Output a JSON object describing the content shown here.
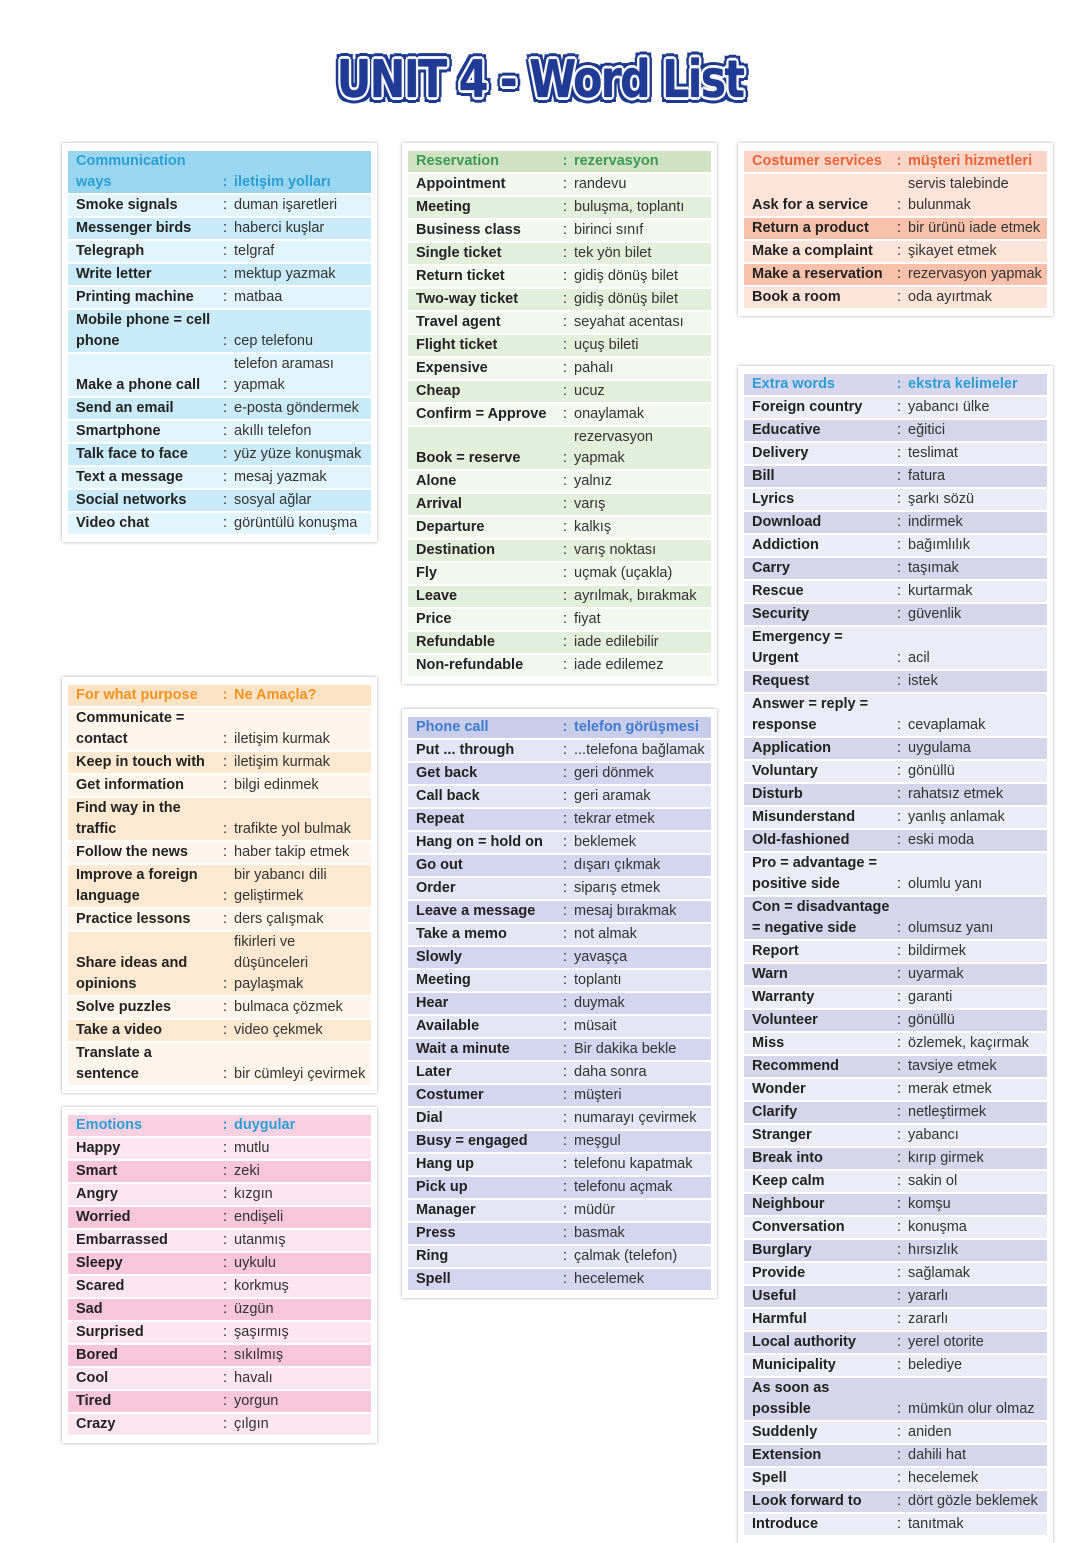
{
  "title": "UNIT 4 - Word List",
  "colors": {
    "title": "#1f3b95",
    "blue": {
      "head": "#9ad6f0",
      "a": "#c9ebf9",
      "b": "#e3f5fc",
      "text": "#2a9fd6"
    },
    "green": {
      "head": "#cfe3c3",
      "a": "#e2efda",
      "b": "#f2f8ee",
      "text": "#3e9a51"
    },
    "salmon": {
      "head": "#fbd6c6",
      "a": "#f9c0aa",
      "b": "#fde3d8",
      "text": "#e8633a"
    },
    "orange": {
      "head": "#fde3c6",
      "a": "#fde8d1",
      "b": "#fff5ea",
      "text": "#f2931f"
    },
    "purple": {
      "head": "#c9cde9",
      "a": "#d3d6ee",
      "b": "#e4e6f5",
      "text": "#3f7bd1"
    },
    "lavender": {
      "head": "#d7d6ec",
      "a": "#d6d6ea",
      "b": "#ececf6",
      "text": "#2a9fd6"
    },
    "pink": {
      "head": "#fad1e1",
      "a": "#f8c6da",
      "b": "#fde6ef",
      "text": "#2a9fd6"
    }
  },
  "sections": [
    {
      "id": "communication",
      "theme": "blue",
      "head": [
        "Communication ways",
        "iletişim yolları"
      ],
      "rows": [
        [
          "Smoke signals",
          "duman işaretleri"
        ],
        [
          "Messenger birds",
          "haberci kuşlar"
        ],
        [
          "Telegraph",
          "telgraf"
        ],
        [
          "Write letter",
          "mektup yazmak"
        ],
        [
          "Printing machine",
          "matbaa"
        ],
        [
          "Mobile phone = cell phone",
          "cep telefonu"
        ],
        [
          "Make a phone call",
          "telefon araması yapmak"
        ],
        [
          "Send an email",
          "e-posta göndermek"
        ],
        [
          "Smartphone",
          "akıllı telefon"
        ],
        [
          "Talk face to face",
          "yüz yüze konuşmak"
        ],
        [
          "Text a message",
          "mesaj yazmak"
        ],
        [
          "Social networks",
          "sosyal ağlar"
        ],
        [
          "Video chat",
          "görüntülü konuşma"
        ]
      ]
    },
    {
      "id": "purpose",
      "theme": "orange",
      "head": [
        "For what purpose",
        "Ne Amaçla?"
      ],
      "rows": [
        [
          "Communicate = contact",
          "iletişim kurmak"
        ],
        [
          "Keep in touch with",
          "iletişim kurmak"
        ],
        [
          "Get information",
          "bilgi edinmek"
        ],
        [
          "Find way in the traffic",
          "trafikte yol bulmak"
        ],
        [
          "Follow the news",
          "haber takip etmek"
        ],
        [
          "Improve a foreign language",
          "bir yabancı dili geliştirmek"
        ],
        [
          "Practice lessons",
          "ders çalışmak"
        ],
        [
          "Share ideas and opinions",
          "fikirleri ve düşünceleri paylaşmak"
        ],
        [
          "Solve puzzles",
          "bulmaca çözmek"
        ],
        [
          "Take a video",
          "video çekmek"
        ],
        [
          "Translate a sentence",
          "bir cümleyi çevirmek"
        ]
      ]
    },
    {
      "id": "emotions",
      "theme": "pink",
      "head": [
        "Emotions",
        "duygular"
      ],
      "rows": [
        [
          "Happy",
          "mutlu"
        ],
        [
          "Smart",
          "zeki"
        ],
        [
          "Angry",
          "kızgın"
        ],
        [
          "Worried",
          "endişeli"
        ],
        [
          "Embarrassed",
          "utanmış"
        ],
        [
          "Sleepy",
          "uykulu"
        ],
        [
          "Scared",
          "korkmuş"
        ],
        [
          "Sad",
          "üzgün"
        ],
        [
          "Surprised",
          "şaşırmış"
        ],
        [
          "Bored",
          "sıkılmış"
        ],
        [
          "Cool",
          "havalı"
        ],
        [
          "Tired",
          "yorgun"
        ],
        [
          "Crazy",
          "çılgın"
        ]
      ]
    },
    {
      "id": "reservation",
      "theme": "green",
      "head": [
        "Reservation",
        "rezervasyon"
      ],
      "rows": [
        [
          "Appointment",
          "randevu"
        ],
        [
          "Meeting",
          "buluşma, toplantı"
        ],
        [
          "Business class",
          "birinci sınıf"
        ],
        [
          "Single ticket",
          "tek yön bilet"
        ],
        [
          "Return ticket",
          "gidiş dönüş bilet"
        ],
        [
          "Two-way ticket",
          "gidiş dönüş bilet"
        ],
        [
          "Travel agent",
          "seyahat acentası"
        ],
        [
          "Flight ticket",
          "uçuş bileti"
        ],
        [
          "Expensive",
          "pahalı"
        ],
        [
          "Cheap",
          "ucuz"
        ],
        [
          "Confirm = Approve",
          "onaylamak"
        ],
        [
          "Book = reserve",
          "rezervasyon yapmak"
        ],
        [
          "Alone",
          "yalnız"
        ],
        [
          "Arrival",
          "varış"
        ],
        [
          "Departure",
          "kalkış"
        ],
        [
          "Destination",
          "varış noktası"
        ],
        [
          "Fly",
          "uçmak (uçakla)"
        ],
        [
          "Leave",
          "ayrılmak, bırakmak"
        ],
        [
          "Price",
          "fiyat"
        ],
        [
          "Refundable",
          "iade edilebilir"
        ],
        [
          "Non-refundable",
          "iade edilemez"
        ]
      ]
    },
    {
      "id": "phone",
      "theme": "purple",
      "head": [
        "Phone call",
        "telefon görüşmesi"
      ],
      "rows": [
        [
          "Put ... through",
          "...telefona bağlamak"
        ],
        [
          "Get back",
          "geri dönmek"
        ],
        [
          "Call back",
          "geri aramak"
        ],
        [
          "Repeat",
          "tekrar etmek"
        ],
        [
          "Hang on = hold on",
          "beklemek"
        ],
        [
          "Go out",
          "dışarı çıkmak"
        ],
        [
          "Order",
          "siparış etmek"
        ],
        [
          "Leave a message",
          "mesaj bırakmak"
        ],
        [
          "Take a memo",
          "not almak"
        ],
        [
          "Slowly",
          "yavaşça"
        ],
        [
          "Meeting",
          "toplantı"
        ],
        [
          "Hear",
          "duymak"
        ],
        [
          "Available",
          "müsait"
        ],
        [
          "Wait a minute",
          "Bir dakika bekle"
        ],
        [
          "Later",
          "daha sonra"
        ],
        [
          "Costumer",
          "müşteri"
        ],
        [
          "Dial",
          "numarayı çevirmek"
        ],
        [
          "Busy = engaged",
          "meşgul"
        ],
        [
          "Hang up",
          "telefonu kapatmak"
        ],
        [
          "Pick up",
          "telefonu açmak"
        ],
        [
          "Manager",
          "müdür"
        ],
        [
          "Press",
          "basmak"
        ],
        [
          "Ring",
          "çalmak (telefon)"
        ],
        [
          "Spell",
          "hecelemek"
        ]
      ]
    },
    {
      "id": "services",
      "theme": "salmon",
      "head": [
        "Costumer services",
        "müşteri hizmetleri"
      ],
      "rows": [
        [
          "Ask for a service",
          "servis talebinde bulunmak"
        ],
        [
          "Return a product",
          "bir ürünü iade etmek"
        ],
        [
          "Make a complaint",
          "şikayet etmek"
        ],
        [
          "Make a reservation",
          "rezervasyon yapmak"
        ],
        [
          "Book a room",
          "oda ayırtmak"
        ]
      ]
    },
    {
      "id": "extra",
      "theme": "lavender",
      "head": [
        "Extra words",
        "ekstra kelimeler"
      ],
      "rows": [
        [
          "Foreign country",
          "yabancı ülke"
        ],
        [
          "Educative",
          "eğitici"
        ],
        [
          "Delivery",
          "teslimat"
        ],
        [
          "Bill",
          "fatura"
        ],
        [
          "Lyrics",
          "şarkı sözü"
        ],
        [
          "Download",
          "indirmek"
        ],
        [
          "Addiction",
          "bağımlılık"
        ],
        [
          "Carry",
          "taşımak"
        ],
        [
          "Rescue",
          "kurtarmak"
        ],
        [
          "Security",
          "güvenlik"
        ],
        [
          "Emergency = Urgent",
          "acil"
        ],
        [
          "Request",
          "istek"
        ],
        [
          "Answer = reply = response",
          "cevaplamak"
        ],
        [
          "Application",
          "uygulama"
        ],
        [
          "Voluntary",
          "gönüllü"
        ],
        [
          "Disturb",
          "rahatsız etmek"
        ],
        [
          "Misunderstand",
          "yanlış anlamak"
        ],
        [
          "Old-fashioned",
          "eski moda"
        ],
        [
          "Pro = advantage = positive side",
          "olumlu yanı"
        ],
        [
          "Con = disadvantage = negative side",
          "olumsuz yanı"
        ],
        [
          "Report",
          "bildirmek"
        ],
        [
          "Warn",
          "uyarmak"
        ],
        [
          "Warranty",
          "garanti"
        ],
        [
          "Volunteer",
          "gönüllü"
        ],
        [
          "Miss",
          "özlemek, kaçırmak"
        ],
        [
          "Recommend",
          "tavsiye etmek"
        ],
        [
          "Wonder",
          "merak etmek"
        ],
        [
          "Clarify",
          "netleştirmek"
        ],
        [
          "Stranger",
          "yabancı"
        ],
        [
          "Break into",
          "kırıp girmek"
        ],
        [
          "Keep calm",
          "sakin ol"
        ],
        [
          "Neighbour",
          "komşu"
        ],
        [
          "Conversation",
          "konuşma"
        ],
        [
          "Burglary",
          "hırsızlık"
        ],
        [
          "Provide",
          "sağlamak"
        ],
        [
          "Useful",
          "yararlı"
        ],
        [
          "Harmful",
          "zararlı"
        ],
        [
          "Local authority",
          "yerel otorite"
        ],
        [
          "Municipality",
          "belediye"
        ],
        [
          "As soon as possible",
          "mümkün olur olmaz"
        ],
        [
          "Suddenly",
          "aniden"
        ],
        [
          "Extension",
          "dahili hat"
        ],
        [
          "Spell",
          "hecelemek"
        ],
        [
          "Look forward to",
          "dört gözle beklemek"
        ],
        [
          "Introduce",
          "tanıtmak"
        ]
      ]
    }
  ]
}
